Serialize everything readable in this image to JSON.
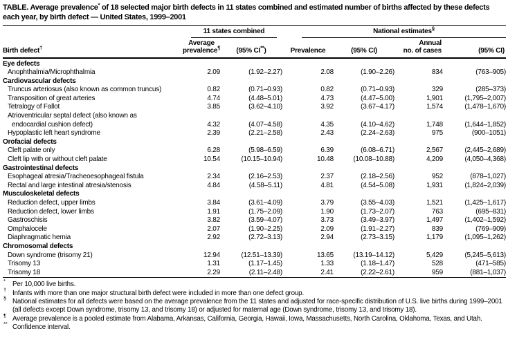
{
  "colors": {
    "text": "#000000",
    "background": "#ffffff",
    "rule": "#000000"
  },
  "title": {
    "part1": "TABLE. Average prevalence",
    "sup1": "*",
    "part2": " of 18 selected major birth defects in 11 states combined and estimated number of births affected by these defects each year, by birth defect — United States, 1999–2001"
  },
  "header": {
    "birth_defect": {
      "label": "Birth defect",
      "sup": "†"
    },
    "group_states": {
      "label": "11 states combined"
    },
    "group_national": {
      "label": "National estimates",
      "sup": "§"
    },
    "avg_prevalence": {
      "line1": "Average",
      "line2": "prevalence",
      "sup": "¶"
    },
    "avg_ci": {
      "pre": "(95% CI",
      "sup": "**",
      "post": ")"
    },
    "prevalence": "Prevalence",
    "ci_national": "(95% CI)",
    "annual_cases": {
      "line1": "Annual",
      "line2": "no. of cases"
    },
    "ci_cases": "(95% CI)"
  },
  "rows": [
    {
      "type": "category",
      "label": "Eye defects"
    },
    {
      "type": "item",
      "label": "Anophthalmia/Microphthalmia",
      "values": [
        "2.09",
        "(1.92–2.27)",
        "2.08",
        "(1.90–2.26)",
        "834",
        "(763–905)"
      ]
    },
    {
      "type": "category",
      "label": "Cardiovascular defects"
    },
    {
      "type": "item",
      "label": "Truncus arteriosus (also known as common truncus)",
      "values": [
        "0.82",
        "(0.71–0.93)",
        "0.82",
        "(0.71–0.93)",
        "329",
        "(285–373)"
      ]
    },
    {
      "type": "item",
      "label": "Transposition of great arteries",
      "values": [
        "4.74",
        "(4.48–5.01)",
        "4.73",
        "(4.47–5.00)",
        "1,901",
        "(1,795–2,007)"
      ]
    },
    {
      "type": "item",
      "label": "Tetralogy of Fallot",
      "values": [
        "3.85",
        "(3.62–4.10)",
        "3.92",
        "(3.67–4.17)",
        "1,574",
        "(1,478–1,670)"
      ]
    },
    {
      "type": "item",
      "label": "Atrioventricular septal defect (also known as",
      "label2": "endocardial cushion defect)",
      "values": [
        "4.32",
        "(4.07–4.58)",
        "4.35",
        "(4.10–4.62)",
        "1,748",
        "(1,644–1,852)"
      ]
    },
    {
      "type": "item",
      "label": "Hypoplastic left heart syndrome",
      "values": [
        "2.39",
        "(2.21–2.58)",
        "2.43",
        "(2.24–2.63)",
        "975",
        "(900–1051)"
      ]
    },
    {
      "type": "category",
      "label": "Orofacial defects"
    },
    {
      "type": "item",
      "label": "Cleft palate only",
      "values": [
        "6.28",
        "(5.98–6.59)",
        "6.39",
        "(6.08–6.71)",
        "2,567",
        "(2,445–2,689)"
      ]
    },
    {
      "type": "item",
      "label": "Cleft lip with or without cleft palate",
      "values": [
        "10.54",
        "(10.15–10.94)",
        "10.48",
        "(10.08–10.88)",
        "4,209",
        "(4,050–4,368)"
      ]
    },
    {
      "type": "category",
      "label": "Gastrointestinal defects"
    },
    {
      "type": "item",
      "label": "Esophageal atresia/Tracheoesophageal fistula",
      "values": [
        "2.34",
        "(2.16–2.53)",
        "2.37",
        "(2.18–2.56)",
        "952",
        "(878–1,027)"
      ]
    },
    {
      "type": "item",
      "label": "Rectal and large intestinal atresia/stenosis",
      "values": [
        "4.84",
        "(4.58–5.11)",
        "4.81",
        "(4.54–5.08)",
        "1,931",
        "(1,824–2,039)"
      ]
    },
    {
      "type": "category",
      "label": "Musculoskeletal defects"
    },
    {
      "type": "item",
      "label": "Reduction defect, upper limbs",
      "values": [
        "3.84",
        "(3.61–4.09)",
        "3.79",
        "(3.55–4.03)",
        "1,521",
        "(1,425–1,617)"
      ]
    },
    {
      "type": "item",
      "label": "Reduction defect, lower limbs",
      "values": [
        "1.91",
        "(1.75–2.09)",
        "1.90",
        "(1.73–2.07)",
        "763",
        "(695–831)"
      ]
    },
    {
      "type": "item",
      "label": "Gastroschisis",
      "values": [
        "3.82",
        "(3.59–4.07)",
        "3.73",
        "(3.49–3.97)",
        "1,497",
        "(1,402–1,592)"
      ]
    },
    {
      "type": "item",
      "label": "Omphalocele",
      "values": [
        "2.07",
        "(1.90–2.25)",
        "2.09",
        "(1.91–2.27)",
        "839",
        "(769–909)"
      ]
    },
    {
      "type": "item",
      "label": "Diaphragmatic hernia",
      "values": [
        "2.92",
        "(2.72–3.13)",
        "2.94",
        "(2.73–3.15)",
        "1,179",
        "(1,095–1,262)"
      ]
    },
    {
      "type": "category",
      "label": "Chromosomal defects"
    },
    {
      "type": "item",
      "label": "Down syndrome (trisomy 21)",
      "values": [
        "12.94",
        "(12.51–13.39)",
        "13.65",
        "(13.19–14.12)",
        "5,429",
        "(5,245–5,613)"
      ]
    },
    {
      "type": "item",
      "label": "Trisomy 13",
      "values": [
        "1.31",
        "(1.17–1.45)",
        "1.33",
        "(1.18–1.47)",
        "528",
        "(471–585)"
      ]
    },
    {
      "type": "item",
      "label": "Trisomy 18",
      "values": [
        "2.29",
        "(2.11–2.48)",
        "2.41",
        "(2.22–2.61)",
        "959",
        "(881–1,037)"
      ]
    }
  ],
  "footnotes": [
    {
      "marker": "*",
      "text": "Per 10,000 live births."
    },
    {
      "marker": "†",
      "text": "Infants with more than one major structural birth defect were included in more than one defect group."
    },
    {
      "marker": "§",
      "text": "National estimates for all defects were based on the average prevalence from the 11 states and adjusted for race-specific distribution of U.S. live births during 1999–2001 (all defects except Down syndrome, trisomy 13, and trisomy 18) or adjusted for maternal age (Down syndrome, trisomy 13, and trisomy 18)."
    },
    {
      "marker": "¶",
      "text": "Average prevalence is a pooled estimate from Alabama, Arkansas, California, Georgia, Hawaii, Iowa, Massachusetts, North Carolina, Oklahoma, Texas, and Utah."
    },
    {
      "marker": "**",
      "text": "Confidence interval."
    }
  ]
}
